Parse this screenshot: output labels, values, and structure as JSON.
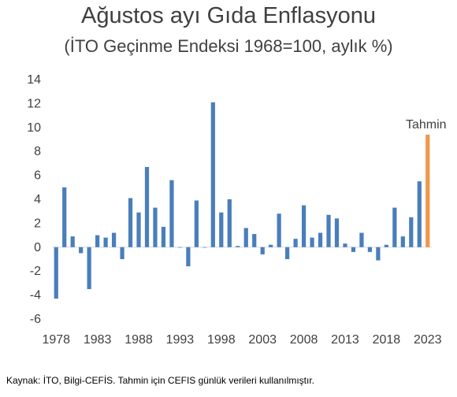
{
  "header": {
    "title": "Ağustos ayı Gıda Enflasyonu",
    "subtitle": "(İTO Geçinme Endeksi 1968=100, aylık %)"
  },
  "footer": {
    "source": "Kaynak: İTO, Bilgi-CEFİS. Tahmin için CEFIS günlük verileri kullanılmıştır."
  },
  "colors": {
    "actual": "#4a7ebb",
    "forecast": "#f0974a",
    "axis": "#d9d9d9"
  },
  "chart_data": {
    "type": "bar",
    "title": "Ağustos ayı Gıda Enflasyonu",
    "subtitle": "(İTO Geçinme Endeksi 1968=100, aylık %)",
    "xlabel": "",
    "ylabel": "",
    "ylim": [
      -6,
      14
    ],
    "yticks": [
      14,
      12,
      10,
      8,
      6,
      4,
      2,
      0,
      -2,
      -4,
      -6
    ],
    "xtick_labels": [
      "1978",
      "1983",
      "1988",
      "1993",
      "1998",
      "2003",
      "2008",
      "2013",
      "2018",
      "2023"
    ],
    "grid": false,
    "categories": [
      "1978",
      "1979",
      "1980",
      "1981",
      "1982",
      "1983",
      "1984",
      "1985",
      "1986",
      "1987",
      "1988",
      "1989",
      "1990",
      "1991",
      "1992",
      "1993",
      "1994",
      "1995",
      "1996",
      "1997",
      "1998",
      "1999",
      "2000",
      "2001",
      "2002",
      "2003",
      "2004",
      "2005",
      "2006",
      "2007",
      "2008",
      "2009",
      "2010",
      "2011",
      "2012",
      "2013",
      "2014",
      "2015",
      "2016",
      "2017",
      "2018",
      "2019",
      "2020",
      "2021",
      "2022",
      "2023"
    ],
    "values": [
      -4.3,
      5.0,
      0.9,
      -0.5,
      -3.5,
      1.0,
      0.8,
      1.2,
      -1.0,
      4.1,
      2.9,
      6.7,
      3.3,
      1.7,
      5.6,
      0.0,
      -1.6,
      3.9,
      0.0,
      12.1,
      2.9,
      4.0,
      0.1,
      1.6,
      1.1,
      -0.6,
      0.2,
      2.8,
      -1.0,
      0.7,
      3.5,
      0.8,
      1.2,
      2.7,
      2.4,
      0.3,
      -0.4,
      1.2,
      -0.4,
      -1.1,
      0.2,
      3.3,
      0.9,
      2.5,
      5.5,
      9.4
    ],
    "forecast_index": 45,
    "annotations": [
      {
        "text": "Tahmin",
        "category": "2023"
      }
    ]
  }
}
